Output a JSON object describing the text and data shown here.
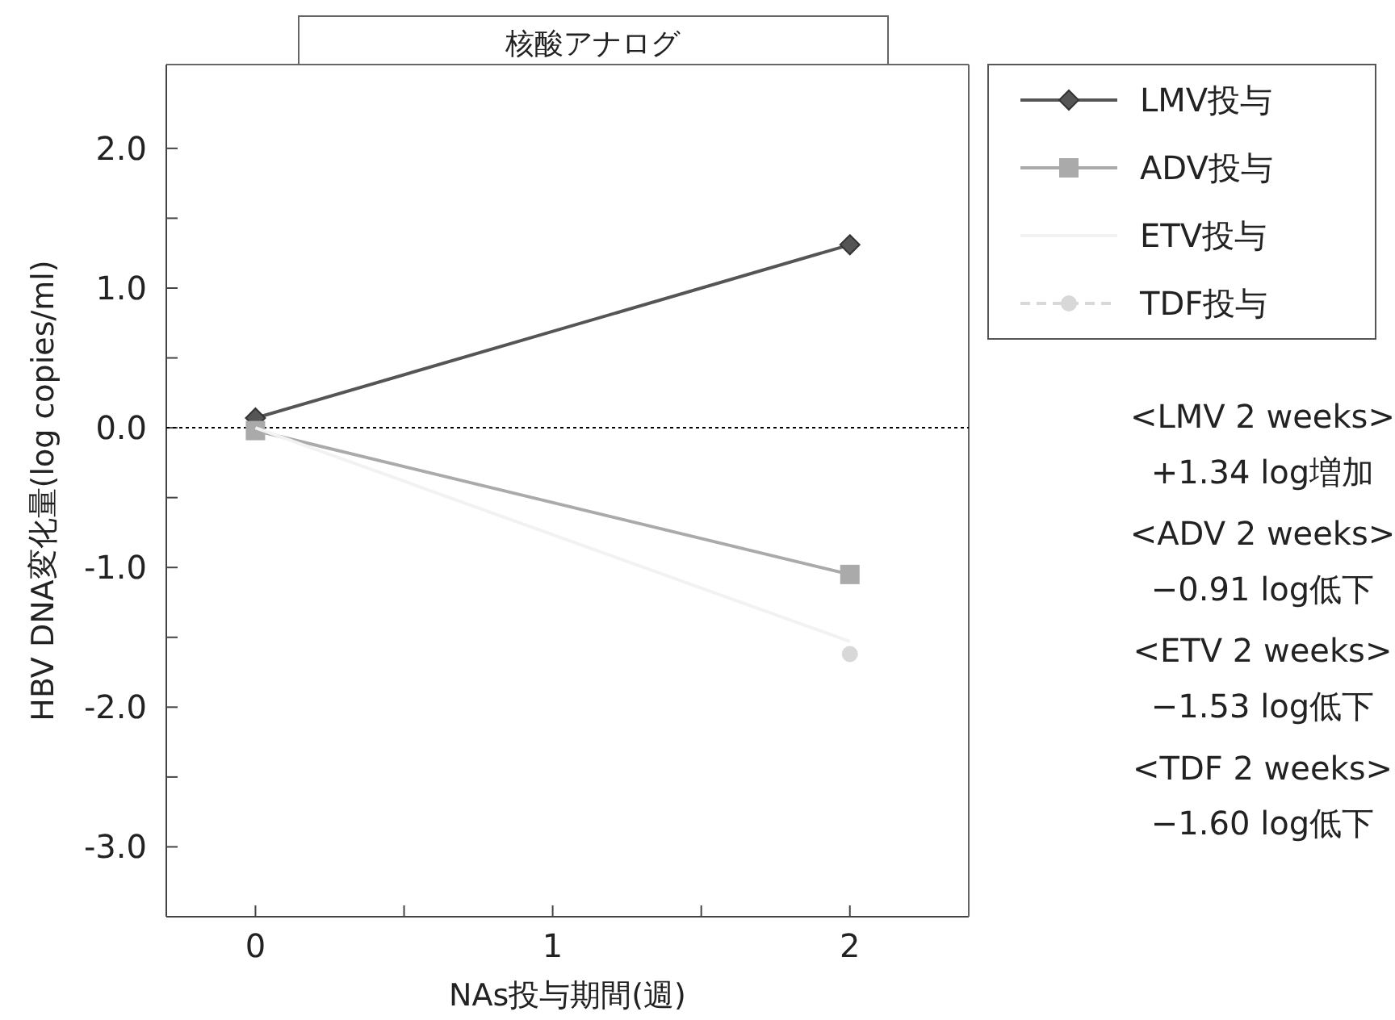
{
  "chart_data": {
    "type": "line",
    "title": "核酸アナログ",
    "xlabel": "NAs投与期間(週)",
    "ylabel": "HBV DNA変化量(log copies/ml)",
    "x": [
      0,
      2
    ],
    "series": [
      {
        "name": "LMV投与",
        "color": "#555555",
        "values": [
          0.07,
          1.31
        ],
        "marker": "diamond"
      },
      {
        "name": "ADV投与",
        "color": "#aaaaaa",
        "values": [
          -0.02,
          -1.05
        ],
        "marker": "square"
      },
      {
        "name": "ETV投与",
        "color": "#f2f2f2",
        "values": [
          0,
          -1.53
        ],
        "marker": "none"
      },
      {
        "name": "TDF投与",
        "color": "#d8d8d8",
        "values": [
          null,
          -1.62
        ],
        "marker": "circle",
        "line_style": "dashed"
      }
    ],
    "xlim": [
      -0.3,
      2.4
    ],
    "ylim": [
      -3.5,
      2.6
    ],
    "xticks": [
      0,
      {
        "value": 0.5,
        "label": null
      },
      1,
      {
        "value": 1.5,
        "label": null
      },
      2
    ],
    "yticks": [
      {
        "value": -3,
        "label": "-3.0"
      },
      {
        "value": -2.5,
        "label": null
      },
      {
        "value": -2,
        "label": "-2.0"
      },
      {
        "value": -1.5,
        "label": null
      },
      {
        "value": -1,
        "label": "-1.0"
      },
      {
        "value": -0.5,
        "label": null
      },
      {
        "value": 0,
        "label": "0.0"
      },
      {
        "value": 0.5,
        "label": null
      },
      {
        "value": 1,
        "label": "1.0"
      },
      {
        "value": 1.5,
        "label": null
      },
      {
        "value": 2,
        "label": "2.0"
      }
    ],
    "ref_lines": [
      {
        "axis": "y",
        "value": 0,
        "color": "#000000",
        "line_style": "dotted"
      }
    ],
    "legend": "top right",
    "annotations": [
      "<LMV 2 weeks>",
      "+1.34 log増加",
      "<ADV 2 weeks>",
      "−0.91 log低下",
      "<ETV 2 weeks>",
      "−1.53 log低下",
      "<TDF 2 weeks>",
      "−1.60 log低下"
    ]
  }
}
